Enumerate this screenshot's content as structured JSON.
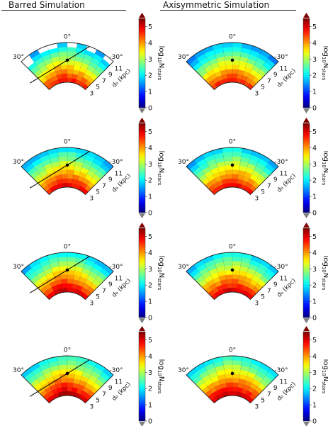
{
  "columns": [
    {
      "title": "Barred Simulation"
    },
    {
      "title": "Axisymmetric Simulation"
    }
  ],
  "chart_data": {
    "type": "heatmap",
    "layout": "polar wedge maps, 4 rows x 2 columns",
    "angle_tick_labels": [
      "30°",
      "0°",
      "-30°"
    ],
    "radial_tick_labels": [
      "3",
      "5",
      "7",
      "9",
      "11"
    ],
    "radial_axis_label": "d₀ (kpc)",
    "colorbar": {
      "label": "log₁₀N_stars",
      "label_main": "log",
      "label_base": "10",
      "label_var": "N",
      "label_sub": "stars",
      "range": [
        0,
        5.5
      ],
      "ticks": [
        "0",
        "1",
        "2",
        "3",
        "4",
        "5"
      ],
      "colormap": "jet"
    },
    "angles": [
      45,
      36,
      27,
      18,
      9,
      0,
      -9,
      -18,
      -27,
      -36,
      -45
    ],
    "radii": [
      3,
      4,
      5,
      6,
      7,
      8,
      9,
      10,
      11,
      12
    ],
    "panels": [
      {
        "column": "Barred Simulation",
        "bar_line": true,
        "bar_angle": 20,
        "empty_bins": [
          [
            8,
            0
          ],
          [
            8,
            2
          ],
          [
            8,
            3
          ],
          [
            8,
            5
          ],
          [
            8,
            7
          ],
          [
            8,
            9
          ],
          [
            8,
            10
          ],
          [
            7,
            0
          ],
          [
            7,
            10
          ]
        ]
      },
      {
        "column": "Axisymmetric Simulation",
        "bar_line": false,
        "bar_angle": null,
        "empty_bins": []
      },
      {
        "column": "Barred Simulation",
        "bar_line": true,
        "bar_angle": 20,
        "empty_bins": []
      },
      {
        "column": "Axisymmetric Simulation",
        "bar_line": false,
        "bar_angle": null,
        "empty_bins": []
      },
      {
        "column": "Barred Simulation",
        "bar_line": true,
        "bar_angle": 20,
        "empty_bins": []
      },
      {
        "column": "Axisymmetric Simulation",
        "bar_line": false,
        "bar_angle": null,
        "empty_bins": []
      },
      {
        "column": "Barred Simulation",
        "bar_line": true,
        "bar_angle": 20,
        "empty_bins": []
      },
      {
        "column": "Axisymmetric Simulation",
        "bar_line": false,
        "bar_angle": null,
        "empty_bins": []
      }
    ]
  }
}
